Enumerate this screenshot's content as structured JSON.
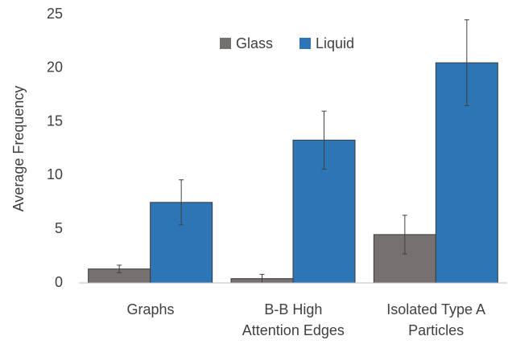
{
  "chart_data": {
    "type": "bar",
    "y_label": "Average Frequency",
    "categories": [
      "Graphs",
      "B-B High\nAttention Edges",
      "Isolated Type A\nParticles"
    ],
    "series": [
      {
        "name": "Glass",
        "color": "#767171",
        "values": [
          1.3,
          0.4,
          4.5
        ],
        "errors": [
          0.35,
          0.4,
          1.8
        ]
      },
      {
        "name": "Liquid",
        "color": "#2e75b6",
        "values": [
          7.5,
          13.3,
          20.5
        ],
        "errors": [
          2.1,
          2.7,
          4.0
        ]
      }
    ],
    "ylim": [
      0,
      25
    ],
    "yticks": [
      0,
      5,
      10,
      15,
      20,
      25
    ],
    "grid": false,
    "legend": "top"
  }
}
